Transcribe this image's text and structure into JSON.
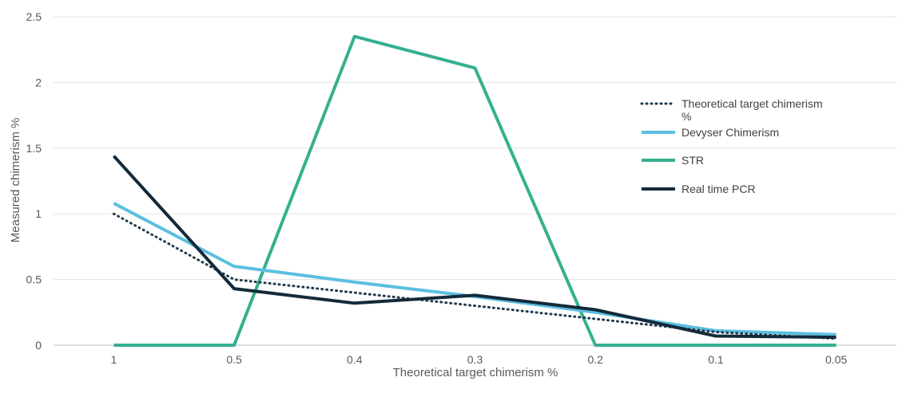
{
  "chart_data": {
    "type": "line",
    "title": "",
    "xlabel": "Theoretical  target chimerism %",
    "ylabel": "Measured  chimerism %",
    "categories": [
      "1",
      "0.5",
      "0.4",
      "0.3",
      "0.2",
      "0.1",
      "0.05"
    ],
    "ylim": [
      0,
      2.5
    ],
    "yticks": [
      "0",
      "0.5",
      "1",
      "1.5",
      "2",
      "2.5"
    ],
    "grid": true,
    "legend_position": "right",
    "series": [
      {
        "name": "Theoretical target chimerism %",
        "values": [
          1,
          0.5,
          0.4,
          0.3,
          0.2,
          0.1,
          0.05
        ],
        "color": "#203a4c",
        "style": "dotted"
      },
      {
        "name": "Devyser Chimerism",
        "values": [
          1.08,
          0.6,
          0.48,
          0.37,
          0.25,
          0.11,
          0.08
        ],
        "color": "#5bbfe0",
        "style": "solid"
      },
      {
        "name": "STR",
        "values": [
          0,
          0,
          2.35,
          2.11,
          0,
          0,
          0
        ],
        "color": "#35b090",
        "style": "solid"
      },
      {
        "name": "Real time PCR",
        "values": [
          1.44,
          0.43,
          0.32,
          0.38,
          0.27,
          0.07,
          0.06
        ],
        "color": "#142a3a",
        "style": "solid"
      }
    ]
  }
}
